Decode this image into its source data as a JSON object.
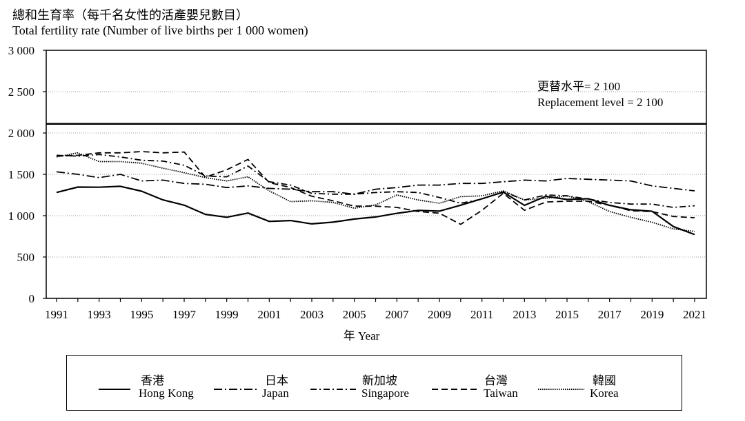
{
  "header": {
    "ylabel_zh": "總和生育率（每千名女性的活產嬰兒數目）",
    "ylabel_en": "Total fertility rate (Number of live births per 1 000 women)"
  },
  "annotation": {
    "zh": "更替水平= 2 100",
    "en": "Replacement level = 2 100"
  },
  "chart_data": {
    "type": "line",
    "xlabel": "年 Year",
    "ylabel": "總和生育率（每千名女性的活產嬰兒數目） Total fertility rate (Number of live births per 1 000 women)",
    "ylim": [
      0,
      3000
    ],
    "xlim": [
      1991,
      2021
    ],
    "yticks": [
      0,
      500,
      1000,
      1500,
      2000,
      2500,
      3000
    ],
    "ytick_labels": [
      "0",
      "500",
      "1 000",
      "1 500",
      "2 000",
      "2 500",
      "3 000"
    ],
    "xticks": [
      1991,
      1993,
      1995,
      1997,
      1999,
      2001,
      2003,
      2005,
      2007,
      2009,
      2011,
      2013,
      2015,
      2017,
      2019,
      2021
    ],
    "grid": "horizontal-dotted",
    "reference_line": {
      "value": 2110,
      "label": "Replacement level = 2 100"
    },
    "legend_position": "bottom",
    "x": [
      1991,
      1992,
      1993,
      1994,
      1995,
      1996,
      1997,
      1998,
      1999,
      2000,
      2001,
      2002,
      2003,
      2004,
      2005,
      2006,
      2007,
      2008,
      2009,
      2010,
      2011,
      2012,
      2013,
      2014,
      2015,
      2016,
      2017,
      2018,
      2019,
      2020,
      2021
    ],
    "series": [
      {
        "name": "Hong Kong",
        "name_zh": "香港",
        "dash": "solid",
        "values": [
          1281,
          1346,
          1344,
          1355,
          1296,
          1191,
          1127,
          1016,
          981,
          1032,
          931,
          941,
          901,
          922,
          959,
          984,
          1028,
          1064,
          1055,
          1127,
          1204,
          1285,
          1125,
          1234,
          1196,
          1205,
          1125,
          1072,
          1053,
          868,
          772
        ]
      },
      {
        "name": "Japan",
        "name_zh": "日本",
        "dash": "dashdot",
        "values": [
          1530,
          1500,
          1460,
          1500,
          1420,
          1430,
          1390,
          1380,
          1340,
          1360,
          1330,
          1320,
          1290,
          1290,
          1260,
          1320,
          1340,
          1370,
          1370,
          1390,
          1390,
          1410,
          1430,
          1420,
          1450,
          1440,
          1430,
          1420,
          1360,
          1330,
          1300
        ]
      },
      {
        "name": "Singapore",
        "name_zh": "新加坡",
        "dash": "dashdotlong",
        "values": [
          1730,
          1720,
          1740,
          1710,
          1670,
          1660,
          1610,
          1480,
          1470,
          1600,
          1410,
          1370,
          1270,
          1260,
          1260,
          1280,
          1290,
          1280,
          1220,
          1150,
          1200,
          1290,
          1190,
          1250,
          1240,
          1200,
          1160,
          1140,
          1140,
          1100,
          1120
        ]
      },
      {
        "name": "Taiwan",
        "name_zh": "台灣",
        "dash": "dashed",
        "values": [
          1720,
          1730,
          1760,
          1760,
          1775,
          1760,
          1770,
          1465,
          1555,
          1680,
          1400,
          1340,
          1235,
          1180,
          1115,
          1115,
          1100,
          1050,
          1030,
          895,
          1065,
          1270,
          1065,
          1165,
          1175,
          1175,
          1125,
          1060,
          1050,
          990,
          975
        ]
      },
      {
        "name": "Korea",
        "name_zh": "韓國",
        "dash": "dotted",
        "values": [
          1710,
          1760,
          1654,
          1654,
          1634,
          1574,
          1520,
          1460,
          1420,
          1470,
          1300,
          1170,
          1180,
          1160,
          1090,
          1130,
          1250,
          1190,
          1150,
          1230,
          1240,
          1300,
          1190,
          1210,
          1240,
          1170,
          1050,
          980,
          920,
          840,
          810
        ]
      }
    ]
  }
}
